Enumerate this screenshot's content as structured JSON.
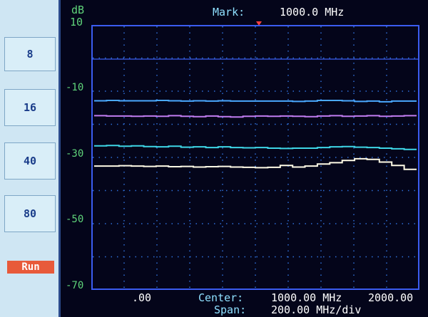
{
  "side_panel": {
    "buttons": [
      "8",
      "16",
      "40",
      "80"
    ],
    "run_label": "Run"
  },
  "header": {
    "unit": "dB",
    "mark_label": "Mark:",
    "mark_value": "1000.0 MHz"
  },
  "axis": {
    "y_labels": [
      "10",
      "-10",
      "-30",
      "-50",
      "-70"
    ]
  },
  "footer": {
    "start": ".00",
    "center_label": "Center:",
    "center_value": "1000.00 MHz",
    "stop": "2000.00",
    "span_label": "Span:",
    "span_value": "200.00 MHz/div"
  },
  "colors": {
    "trace_blue": "#4aa8ff",
    "trace_magenta": "#c07cf0",
    "trace_cyan": "#3ed6e6",
    "trace_white": "#fffbe6",
    "grid_dot": "#2f6fd8",
    "panel_bg": "#cfe6f3",
    "run_button": "#e85a3a"
  },
  "traces": [
    {
      "color": "#4aa8ff",
      "values": [
        -12.9,
        -12.8,
        -12.9,
        -12.9,
        -12.9,
        -12.8,
        -12.9,
        -13.0,
        -12.9,
        -13.0,
        -12.9,
        -13.0,
        -13.0,
        -13.0,
        -13.0,
        -13.0,
        -13.1,
        -13.0,
        -12.8,
        -12.8,
        -12.9,
        -13.1,
        -13.0,
        -13.2,
        -13.0,
        -13.0
      ]
    },
    {
      "color": "#c07cf0",
      "values": [
        -17.4,
        -17.5,
        -17.5,
        -17.6,
        -17.5,
        -17.6,
        -17.4,
        -17.6,
        -17.7,
        -17.5,
        -17.7,
        -17.8,
        -17.6,
        -17.5,
        -17.6,
        -17.5,
        -17.6,
        -17.7,
        -17.5,
        -17.4,
        -17.6,
        -17.5,
        -17.4,
        -17.6,
        -17.5,
        -17.4
      ]
    },
    {
      "color": "#3ed6e6",
      "values": [
        -26.5,
        -26.4,
        -26.6,
        -26.5,
        -26.7,
        -26.8,
        -26.6,
        -26.9,
        -26.8,
        -27.0,
        -26.8,
        -27.0,
        -27.1,
        -27.0,
        -27.2,
        -27.3,
        -27.2,
        -27.2,
        -27.0,
        -26.8,
        -26.7,
        -26.9,
        -27.0,
        -27.2,
        -27.4,
        -27.6
      ]
    },
    {
      "color": "#fffbe6",
      "values": [
        -32.6,
        -32.6,
        -32.5,
        -32.6,
        -32.7,
        -32.6,
        -32.8,
        -32.7,
        -32.9,
        -32.8,
        -32.7,
        -32.9,
        -33.0,
        -33.1,
        -33.0,
        -32.4,
        -32.9,
        -32.6,
        -32.0,
        -31.6,
        -30.9,
        -30.4,
        -30.6,
        -31.4,
        -32.4,
        -33.6
      ]
    }
  ]
}
